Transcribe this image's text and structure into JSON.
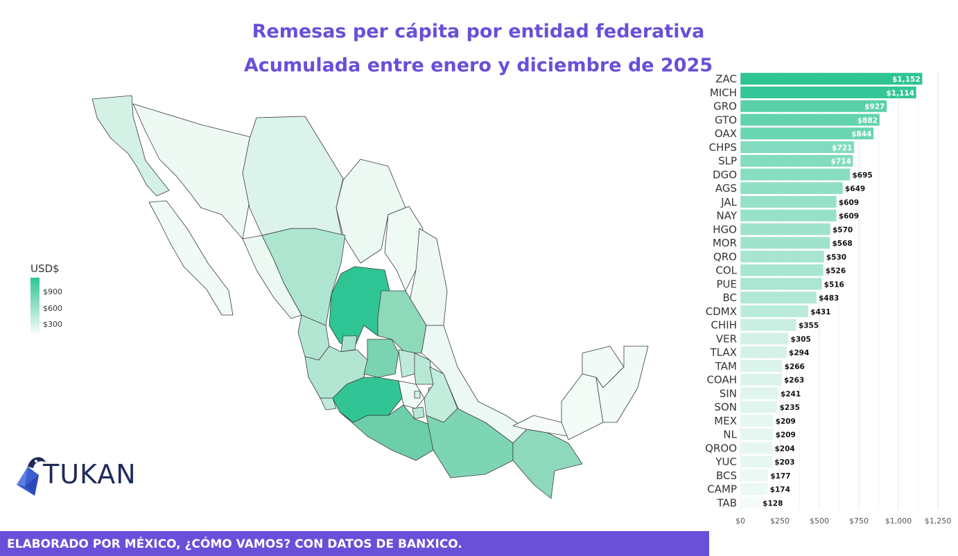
{
  "title": {
    "line1": "Remesas per cápita por entidad federativa",
    "line2": "Acumulada entre enero y diciembre de 2025"
  },
  "legend": {
    "title": "USD$",
    "labels": [
      "$900",
      "$600",
      "$300"
    ],
    "color_high": "#2ec493",
    "color_low": "#f5fbf8"
  },
  "logo": {
    "text": "TUKAN",
    "icon": "toucan-icon"
  },
  "footer": {
    "text": "ELABORADO POR MÉXICO, ¿CÓMO VAMOS? CON DATOS DE BANXICO."
  },
  "colors": {
    "accent": "#6a4fd8",
    "bar_max": "#2ec493",
    "bar_min": "#f5fbf8"
  },
  "chart_data": [
    {
      "type": "bar",
      "orientation": "horizontal",
      "categories": [
        "ZAC",
        "MICH",
        "GRO",
        "GTO",
        "OAX",
        "CHPS",
        "SLP",
        "DGO",
        "AGS",
        "JAL",
        "NAY",
        "HGO",
        "MOR",
        "QRO",
        "COL",
        "PUE",
        "BC",
        "CDMX",
        "CHIH",
        "VER",
        "TLAX",
        "TAM",
        "COAH",
        "SIN",
        "SON",
        "MEX",
        "NL",
        "QROO",
        "YUC",
        "BCS",
        "CAMP",
        "TAB"
      ],
      "values": [
        1152,
        1114,
        927,
        882,
        844,
        721,
        714,
        695,
        649,
        609,
        609,
        570,
        568,
        530,
        526,
        516,
        483,
        431,
        355,
        305,
        294,
        266,
        263,
        241,
        235,
        209,
        209,
        204,
        203,
        177,
        174,
        128
      ],
      "labels": [
        "$1,152",
        "$1,114",
        "$927",
        "$882",
        "$844",
        "$721",
        "$714",
        "$695",
        "$649",
        "$609",
        "$609",
        "$570",
        "$568",
        "$530",
        "$526",
        "$516",
        "$483",
        "$431",
        "$355",
        "$305",
        "$294",
        "$266",
        "$263",
        "$241",
        "$235",
        "$209",
        "$209",
        "$204",
        "$203",
        "$177",
        "$174",
        "$128"
      ],
      "xticks": [
        "$0",
        "$250",
        "$500",
        "$750",
        "$1,000",
        "$1,250"
      ],
      "xtick_values": [
        0,
        250,
        500,
        750,
        1000,
        1250
      ],
      "xlim": [
        0,
        1250
      ],
      "grid": true
    },
    {
      "type": "heatmap",
      "subtype": "choropleth-map",
      "region": "México",
      "legend": "USD$",
      "scale_range": [
        128,
        1152
      ]
    }
  ]
}
